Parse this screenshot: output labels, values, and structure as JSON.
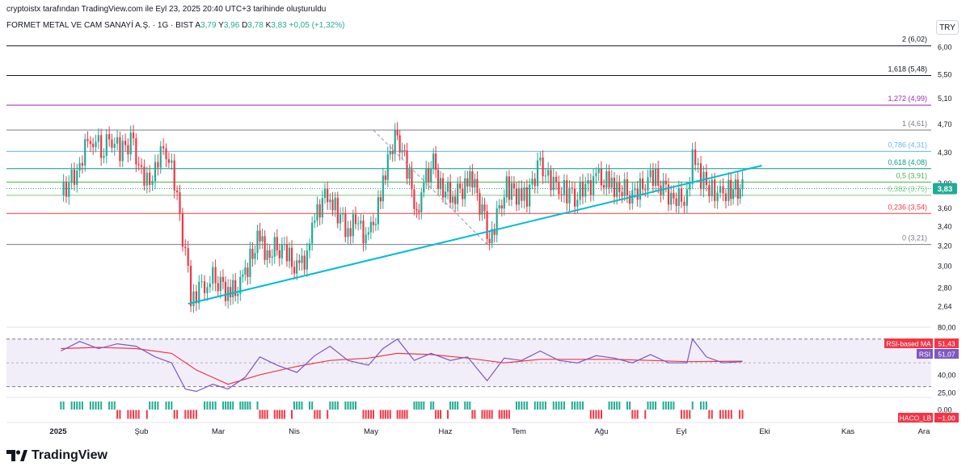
{
  "header": {
    "author_line": "cryptoistx tarafından TradingView.com ile Eyl 23, 2025 20:40 UTC+3 tarihinde oluşturuldu"
  },
  "symbol_bar": {
    "name": "FORMET METAL VE CAM SANAYİ A.Ş. · 1G · BIST",
    "o_label": "A",
    "o_value": "3,79",
    "h_label": "Y",
    "h_value": "3,96",
    "l_label": "D",
    "l_value": "3,78",
    "c_label": "K",
    "c_value": "3,83",
    "change": "+0,05 (+1,32%)"
  },
  "currency": "TRY",
  "branding": {
    "name": "TradingView",
    "icon": "tradingview-logo-icon"
  },
  "colors": {
    "up": "#22ab94",
    "down": "#f23645",
    "trendline": "#00bcd4",
    "rsi": "#7e57c2",
    "rsi_ma": "#f23645",
    "fib_0": "#787b86",
    "fib_0236": "#f23645",
    "fib_0382": "#81c784",
    "fib_05": "#4caf50",
    "fib_0618": "#089981",
    "fib_0786": "#64b5f6",
    "fib_1": "#787b86",
    "fib_1272": "#9c27b0",
    "fib_1618": "#131722",
    "fib_2": "#131722"
  },
  "chart_data": [
    {
      "type": "candlestick",
      "title": "FORMET METAL VE CAM SANAYİ A.Ş. · 1G · BIST",
      "x_axis_labels": [
        "2025",
        "Şub",
        "Mar",
        "Nis",
        "May",
        "Haz",
        "Tem",
        "Ağu",
        "Eyl",
        "Eki",
        "Kas",
        "Ara"
      ],
      "y_axis_labels": [
        "6,00",
        "5,50",
        "5,10",
        "4,70",
        "4,30",
        "3,90",
        "3,60",
        "3,40",
        "3,20",
        "3,00",
        "2,80",
        "2,64"
      ],
      "ylim": [
        2.6,
        6.3
      ],
      "y_scale": "log",
      "last_price": 3.83,
      "last_price_label": "3,83",
      "fibonacci_levels": [
        {
          "ratio": "2",
          "value": 6.02,
          "label": "2 (6,02)"
        },
        {
          "ratio": "1.618",
          "value": 5.48,
          "label": "1,618 (5,48)"
        },
        {
          "ratio": "1.272",
          "value": 4.99,
          "label": "1,272 (4,99)"
        },
        {
          "ratio": "1",
          "value": 4.61,
          "label": "1 (4,61)"
        },
        {
          "ratio": "0.786",
          "value": 4.31,
          "label": "0,786 (4,31)"
        },
        {
          "ratio": "0.618",
          "value": 4.08,
          "label": "0,618 (4,08)"
        },
        {
          "ratio": "0.5",
          "value": 3.91,
          "label": "0,5 (3,91)"
        },
        {
          "ratio": "0.382",
          "value": 3.75,
          "label": "0,382 (3,75)"
        },
        {
          "ratio": "0.236",
          "value": 3.54,
          "label": "0,236 (3,54)"
        },
        {
          "ratio": "0",
          "value": 3.21,
          "label": "0 (3,21)"
        }
      ],
      "trendline": {
        "start": {
          "date": "2025-02-18",
          "value": 2.66
        },
        "end": {
          "date": "2025-09-30",
          "value": 4.12
        }
      },
      "fib_anchor_line": {
        "start": {
          "date": "2025-05-02",
          "value": 4.61
        },
        "end": {
          "date": "2025-06-18",
          "value": 3.21
        }
      },
      "price_path": [
        {
          "date": "2025-01-02",
          "value": 3.75
        },
        {
          "date": "2025-01-08",
          "value": 4.05
        },
        {
          "date": "2025-01-13",
          "value": 4.55
        },
        {
          "date": "2025-01-17",
          "value": 4.35
        },
        {
          "date": "2025-01-21",
          "value": 4.5
        },
        {
          "date": "2025-01-24",
          "value": 4.3
        },
        {
          "date": "2025-01-28",
          "value": 4.45
        },
        {
          "date": "2025-01-31",
          "value": 4.15
        },
        {
          "date": "2025-02-04",
          "value": 3.85
        },
        {
          "date": "2025-02-06",
          "value": 4.2
        },
        {
          "date": "2025-02-10",
          "value": 4.35
        },
        {
          "date": "2025-02-13",
          "value": 3.9
        },
        {
          "date": "2025-02-17",
          "value": 3.1
        },
        {
          "date": "2025-02-19",
          "value": 2.7
        },
        {
          "date": "2025-02-24",
          "value": 2.85
        },
        {
          "date": "2025-02-28",
          "value": 2.9
        },
        {
          "date": "2025-03-05",
          "value": 2.75
        },
        {
          "date": "2025-03-10",
          "value": 2.8
        },
        {
          "date": "2025-03-13",
          "value": 3.0
        },
        {
          "date": "2025-03-18",
          "value": 3.3
        },
        {
          "date": "2025-03-21",
          "value": 3.1
        },
        {
          "date": "2025-03-25",
          "value": 3.2
        },
        {
          "date": "2025-03-28",
          "value": 3.15
        },
        {
          "date": "2025-04-02",
          "value": 2.95
        },
        {
          "date": "2025-04-07",
          "value": 3.15
        },
        {
          "date": "2025-04-09",
          "value": 3.5
        },
        {
          "date": "2025-04-14",
          "value": 3.8
        },
        {
          "date": "2025-04-17",
          "value": 3.6
        },
        {
          "date": "2025-04-22",
          "value": 3.35
        },
        {
          "date": "2025-04-25",
          "value": 3.45
        },
        {
          "date": "2025-04-30",
          "value": 3.25
        },
        {
          "date": "2025-05-05",
          "value": 3.7
        },
        {
          "date": "2025-05-08",
          "value": 4.25
        },
        {
          "date": "2025-05-12",
          "value": 4.55
        },
        {
          "date": "2025-05-15",
          "value": 4.2
        },
        {
          "date": "2025-05-19",
          "value": 3.7
        },
        {
          "date": "2025-05-21",
          "value": 3.45
        },
        {
          "date": "2025-05-23",
          "value": 3.9
        },
        {
          "date": "2025-05-27",
          "value": 4.15
        },
        {
          "date": "2025-05-30",
          "value": 3.85
        },
        {
          "date": "2025-06-04",
          "value": 3.75
        },
        {
          "date": "2025-06-09",
          "value": 3.85
        },
        {
          "date": "2025-06-12",
          "value": 3.95
        },
        {
          "date": "2025-06-16",
          "value": 3.55
        },
        {
          "date": "2025-06-19",
          "value": 3.25
        },
        {
          "date": "2025-06-23",
          "value": 3.6
        },
        {
          "date": "2025-06-26",
          "value": 3.85
        },
        {
          "date": "2025-07-01",
          "value": 3.75
        },
        {
          "date": "2025-07-04",
          "value": 3.7
        },
        {
          "date": "2025-07-08",
          "value": 4.1
        },
        {
          "date": "2025-07-11",
          "value": 4.05
        },
        {
          "date": "2025-07-15",
          "value": 3.85
        },
        {
          "date": "2025-07-18",
          "value": 3.8
        },
        {
          "date": "2025-07-22",
          "value": 3.75
        },
        {
          "date": "2025-07-25",
          "value": 3.8
        },
        {
          "date": "2025-07-30",
          "value": 3.95
        },
        {
          "date": "2025-08-04",
          "value": 3.9
        },
        {
          "date": "2025-08-07",
          "value": 3.85
        },
        {
          "date": "2025-08-11",
          "value": 3.8
        },
        {
          "date": "2025-08-14",
          "value": 3.75
        },
        {
          "date": "2025-08-18",
          "value": 3.9
        },
        {
          "date": "2025-08-21",
          "value": 4.0
        },
        {
          "date": "2025-08-25",
          "value": 3.8
        },
        {
          "date": "2025-08-28",
          "value": 3.75
        },
        {
          "date": "2025-09-01",
          "value": 3.7
        },
        {
          "date": "2025-09-03",
          "value": 3.8
        },
        {
          "date": "2025-09-05",
          "value": 4.2
        },
        {
          "date": "2025-09-08",
          "value": 3.95
        },
        {
          "date": "2025-09-11",
          "value": 3.85
        },
        {
          "date": "2025-09-15",
          "value": 3.75
        },
        {
          "date": "2025-09-18",
          "value": 3.82
        },
        {
          "date": "2025-09-23",
          "value": 3.83
        }
      ]
    },
    {
      "type": "line",
      "title": "RSI",
      "y_axis_labels": [
        "80,00",
        "40,00",
        "25,00"
      ],
      "ylim": [
        20,
        85
      ],
      "overbought": 70,
      "oversold": 30,
      "middle": 50,
      "series": [
        {
          "name": "RSI",
          "last": 51.07,
          "last_label": "51,07",
          "values": [
            {
              "date": "2025-01-02",
              "value": 60
            },
            {
              "date": "2025-01-09",
              "value": 68
            },
            {
              "date": "2025-01-16",
              "value": 62
            },
            {
              "date": "2025-01-23",
              "value": 66
            },
            {
              "date": "2025-01-30",
              "value": 64
            },
            {
              "date": "2025-02-06",
              "value": 55
            },
            {
              "date": "2025-02-12",
              "value": 50
            },
            {
              "date": "2025-02-17",
              "value": 28
            },
            {
              "date": "2025-02-21",
              "value": 26
            },
            {
              "date": "2025-02-27",
              "value": 32
            },
            {
              "date": "2025-03-05",
              "value": 28
            },
            {
              "date": "2025-03-12",
              "value": 38
            },
            {
              "date": "2025-03-18",
              "value": 55
            },
            {
              "date": "2025-03-25",
              "value": 48
            },
            {
              "date": "2025-04-02",
              "value": 42
            },
            {
              "date": "2025-04-09",
              "value": 56
            },
            {
              "date": "2025-04-15",
              "value": 64
            },
            {
              "date": "2025-04-22",
              "value": 52
            },
            {
              "date": "2025-04-30",
              "value": 48
            },
            {
              "date": "2025-05-06",
              "value": 62
            },
            {
              "date": "2025-05-12",
              "value": 70
            },
            {
              "date": "2025-05-19",
              "value": 52
            },
            {
              "date": "2025-05-26",
              "value": 58
            },
            {
              "date": "2025-06-03",
              "value": 52
            },
            {
              "date": "2025-06-10",
              "value": 55
            },
            {
              "date": "2025-06-18",
              "value": 35
            },
            {
              "date": "2025-06-25",
              "value": 54
            },
            {
              "date": "2025-07-02",
              "value": 52
            },
            {
              "date": "2025-07-09",
              "value": 60
            },
            {
              "date": "2025-07-16",
              "value": 52
            },
            {
              "date": "2025-07-23",
              "value": 50
            },
            {
              "date": "2025-07-30",
              "value": 56
            },
            {
              "date": "2025-08-06",
              "value": 54
            },
            {
              "date": "2025-08-13",
              "value": 50
            },
            {
              "date": "2025-08-20",
              "value": 57
            },
            {
              "date": "2025-08-27",
              "value": 50
            },
            {
              "date": "2025-09-03",
              "value": 50
            },
            {
              "date": "2025-09-05",
              "value": 70
            },
            {
              "date": "2025-09-10",
              "value": 55
            },
            {
              "date": "2025-09-16",
              "value": 50
            },
            {
              "date": "2025-09-23",
              "value": 51.07
            }
          ]
        },
        {
          "name": "RSI-based MA",
          "last": 51.43,
          "last_label": "51,43",
          "values": [
            {
              "date": "2025-01-02",
              "value": 62
            },
            {
              "date": "2025-01-16",
              "value": 63
            },
            {
              "date": "2025-01-30",
              "value": 62
            },
            {
              "date": "2025-02-12",
              "value": 58
            },
            {
              "date": "2025-02-21",
              "value": 44
            },
            {
              "date": "2025-03-05",
              "value": 32
            },
            {
              "date": "2025-03-18",
              "value": 40
            },
            {
              "date": "2025-04-02",
              "value": 47
            },
            {
              "date": "2025-04-15",
              "value": 52
            },
            {
              "date": "2025-04-30",
              "value": 54
            },
            {
              "date": "2025-05-12",
              "value": 58
            },
            {
              "date": "2025-05-26",
              "value": 57
            },
            {
              "date": "2025-06-10",
              "value": 54
            },
            {
              "date": "2025-06-25",
              "value": 50
            },
            {
              "date": "2025-07-09",
              "value": 53
            },
            {
              "date": "2025-07-23",
              "value": 53
            },
            {
              "date": "2025-08-06",
              "value": 53
            },
            {
              "date": "2025-08-20",
              "value": 52
            },
            {
              "date": "2025-09-03",
              "value": 51
            },
            {
              "date": "2025-09-23",
              "value": 51.43
            }
          ]
        }
      ]
    },
    {
      "type": "bar",
      "title": "HACO_LB",
      "y_axis_labels": [
        "0,00"
      ],
      "last": -1.0,
      "last_label": "−1,00",
      "segments": [
        {
          "start": "2025-01-02",
          "end": "2025-01-22",
          "state": "up"
        },
        {
          "start": "2025-01-23",
          "end": "2025-02-03",
          "state": "down"
        },
        {
          "start": "2025-02-04",
          "end": "2025-02-12",
          "state": "up"
        },
        {
          "start": "2025-02-13",
          "end": "2025-02-21",
          "state": "down"
        },
        {
          "start": "2025-02-24",
          "end": "2025-03-17",
          "state": "up"
        },
        {
          "start": "2025-03-18",
          "end": "2025-03-31",
          "state": "down"
        },
        {
          "start": "2025-04-01",
          "end": "2025-04-08",
          "state": "up"
        },
        {
          "start": "2025-04-09",
          "end": "2025-04-14",
          "state": "down"
        },
        {
          "start": "2025-04-15",
          "end": "2025-04-25",
          "state": "up"
        },
        {
          "start": "2025-04-28",
          "end": "2025-05-16",
          "state": "down"
        },
        {
          "start": "2025-05-19",
          "end": "2025-05-27",
          "state": "up"
        },
        {
          "start": "2025-05-28",
          "end": "2025-06-02",
          "state": "down"
        },
        {
          "start": "2025-06-03",
          "end": "2025-06-11",
          "state": "up"
        },
        {
          "start": "2025-06-12",
          "end": "2025-06-27",
          "state": "down"
        },
        {
          "start": "2025-06-30",
          "end": "2025-07-25",
          "state": "up"
        },
        {
          "start": "2025-07-28",
          "end": "2025-08-01",
          "state": "down"
        },
        {
          "start": "2025-08-04",
          "end": "2025-08-12",
          "state": "up"
        },
        {
          "start": "2025-08-13",
          "end": "2025-08-18",
          "state": "down"
        },
        {
          "start": "2025-08-19",
          "end": "2025-08-29",
          "state": "up"
        },
        {
          "start": "2025-09-01",
          "end": "2025-09-04",
          "state": "down"
        },
        {
          "start": "2025-09-05",
          "end": "2025-09-10",
          "state": "up"
        },
        {
          "start": "2025-09-11",
          "end": "2025-09-23",
          "state": "down"
        }
      ]
    }
  ]
}
